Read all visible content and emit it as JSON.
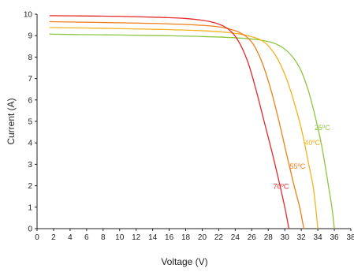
{
  "chart_data": {
    "type": "line",
    "xlabel": "Voltage (V)",
    "ylabel": "Current (A)",
    "xlim": [
      0,
      38
    ],
    "ylim": [
      0,
      10
    ],
    "xticks": [
      0,
      2,
      4,
      6,
      8,
      10,
      12,
      14,
      16,
      18,
      20,
      22,
      24,
      26,
      28,
      30,
      32,
      34,
      36,
      38
    ],
    "yticks": [
      0,
      1,
      2,
      3,
      4,
      5,
      6,
      7,
      8,
      9,
      10
    ],
    "grid": false,
    "legend": "inline labels",
    "series": [
      {
        "name": "25ºC",
        "color": "#8dc63f",
        "points": [
          [
            1.5,
            9.07
          ],
          [
            5,
            9.05
          ],
          [
            10,
            9.03
          ],
          [
            15,
            9.0
          ],
          [
            20,
            8.96
          ],
          [
            24,
            8.9
          ],
          [
            27,
            8.8
          ],
          [
            29,
            8.6
          ],
          [
            30.5,
            8.2
          ],
          [
            31.8,
            7.5
          ],
          [
            32.8,
            6.5
          ],
          [
            33.7,
            5.2
          ],
          [
            34.5,
            3.8
          ],
          [
            35.2,
            2.2
          ],
          [
            35.7,
            1.0
          ],
          [
            36.0,
            0
          ]
        ],
        "label_at": [
          33.6,
          4.6
        ]
      },
      {
        "name": "40ºC",
        "color": "#f5b21e",
        "points": [
          [
            1.5,
            9.38
          ],
          [
            5,
            9.36
          ],
          [
            10,
            9.33
          ],
          [
            15,
            9.29
          ],
          [
            20,
            9.23
          ],
          [
            23,
            9.15
          ],
          [
            25.5,
            9.0
          ],
          [
            27.5,
            8.7
          ],
          [
            29,
            8.0
          ],
          [
            30.2,
            7.0
          ],
          [
            31.2,
            5.8
          ],
          [
            32.1,
            4.5
          ],
          [
            32.9,
            3.0
          ],
          [
            33.5,
            1.8
          ],
          [
            34.0,
            0
          ]
        ],
        "label_at": [
          32.4,
          3.9
        ]
      },
      {
        "name": "55ºC",
        "color": "#f07f1b",
        "points": [
          [
            1.5,
            9.65
          ],
          [
            5,
            9.63
          ],
          [
            10,
            9.6
          ],
          [
            15,
            9.56
          ],
          [
            20,
            9.48
          ],
          [
            22.5,
            9.38
          ],
          [
            24.5,
            9.15
          ],
          [
            26,
            8.7
          ],
          [
            27.2,
            7.8
          ],
          [
            28.3,
            6.5
          ],
          [
            29.3,
            5.0
          ],
          [
            30.2,
            3.5
          ],
          [
            31.0,
            2.2
          ],
          [
            31.8,
            1.0
          ],
          [
            32.3,
            0
          ]
        ],
        "label_at": [
          30.6,
          2.8
        ]
      },
      {
        "name": "70ºC",
        "color": "#e52a2a",
        "points": [
          [
            1.5,
            9.93
          ],
          [
            5,
            9.92
          ],
          [
            10,
            9.9
          ],
          [
            15,
            9.85
          ],
          [
            18,
            9.8
          ],
          [
            21,
            9.65
          ],
          [
            23,
            9.35
          ],
          [
            24.3,
            8.8
          ],
          [
            25.5,
            7.8
          ],
          [
            26.5,
            6.5
          ],
          [
            27.5,
            5.0
          ],
          [
            28.5,
            3.5
          ],
          [
            29.3,
            2.2
          ],
          [
            30.0,
            1.0
          ],
          [
            30.5,
            0
          ]
        ],
        "label_at": [
          28.6,
          1.85
        ]
      }
    ]
  }
}
